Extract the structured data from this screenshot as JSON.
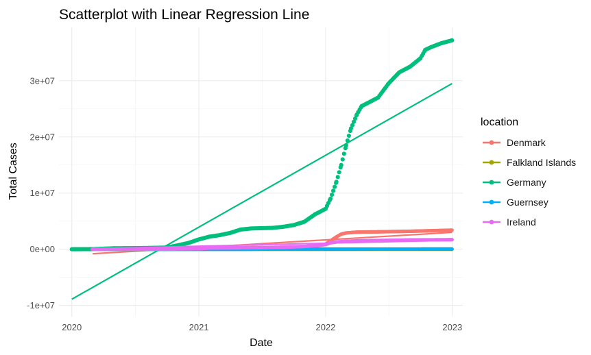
{
  "chart_data": {
    "type": "scatter",
    "title": "Scatterplot with Linear Regression Line",
    "xlabel": "Date",
    "ylabel": "Total Cases",
    "x_axis_type": "date",
    "xlim": [
      "2019-11-25",
      "2023-01-31"
    ],
    "ylim": [
      -12000000,
      39500000
    ],
    "x_ticks": [
      {
        "value": "2020-01-01",
        "label": "2020"
      },
      {
        "value": "2021-01-01",
        "label": "2021"
      },
      {
        "value": "2022-01-01",
        "label": "2022"
      },
      {
        "value": "2023-01-01",
        "label": "2023"
      }
    ],
    "y_ticks": [
      {
        "value": -10000000,
        "label": "-1e+07"
      },
      {
        "value": 0,
        "label": "0e+00"
      },
      {
        "value": 10000000,
        "label": "1e+07"
      },
      {
        "value": 20000000,
        "label": "2e+07"
      },
      {
        "value": 30000000,
        "label": "3e+07"
      }
    ],
    "grid": true,
    "legend_position": "right",
    "legend_title": "location",
    "series": [
      {
        "name": "Denmark",
        "color": "#F8766D",
        "points": [
          [
            "2020-02-27",
            0
          ],
          [
            "2020-06-01",
            12000
          ],
          [
            "2020-09-01",
            25000
          ],
          [
            "2020-12-01",
            90000
          ],
          [
            "2021-01-15",
            190000
          ],
          [
            "2021-06-01",
            290000
          ],
          [
            "2021-10-01",
            360000
          ],
          [
            "2021-11-15",
            450000
          ],
          [
            "2021-12-15",
            700000
          ],
          [
            "2022-01-01",
            900000
          ],
          [
            "2022-01-15",
            1500000
          ],
          [
            "2022-02-01",
            2200000
          ],
          [
            "2022-02-15",
            2700000
          ],
          [
            "2022-03-01",
            2900000
          ],
          [
            "2022-04-01",
            3050000
          ],
          [
            "2022-06-01",
            3100000
          ],
          [
            "2022-09-01",
            3200000
          ],
          [
            "2022-12-31",
            3400000
          ]
        ],
        "regression": {
          "start": [
            "2020-03-01",
            -800000
          ],
          "end": [
            "2022-12-31",
            3000000
          ]
        }
      },
      {
        "name": "Falkland Islands",
        "color": "#A3A500",
        "points": [
          [
            "2020-04-04",
            0
          ],
          [
            "2021-06-01",
            60
          ],
          [
            "2022-06-01",
            1900
          ],
          [
            "2022-12-31",
            1930
          ]
        ],
        "regression": {
          "start": [
            "2020-04-01",
            0
          ],
          "end": [
            "2022-12-31",
            0
          ]
        }
      },
      {
        "name": "Germany",
        "color": "#00BF7D",
        "points": [
          [
            "2020-01-01",
            0
          ],
          [
            "2020-03-01",
            20000
          ],
          [
            "2020-05-01",
            170000
          ],
          [
            "2020-08-01",
            220000
          ],
          [
            "2020-10-01",
            300000
          ],
          [
            "2020-11-01",
            700000
          ],
          [
            "2020-12-01",
            1100000
          ],
          [
            "2021-01-01",
            1750000
          ],
          [
            "2021-02-01",
            2250000
          ],
          [
            "2021-03-01",
            2500000
          ],
          [
            "2021-04-01",
            2900000
          ],
          [
            "2021-05-01",
            3500000
          ],
          [
            "2021-06-01",
            3700000
          ],
          [
            "2021-08-01",
            3800000
          ],
          [
            "2021-09-01",
            4000000
          ],
          [
            "2021-10-01",
            4300000
          ],
          [
            "2021-11-01",
            4900000
          ],
          [
            "2021-12-01",
            6200000
          ],
          [
            "2022-01-01",
            7200000
          ],
          [
            "2022-01-15",
            9000000
          ],
          [
            "2022-02-01",
            12000000
          ],
          [
            "2022-02-15",
            15000000
          ],
          [
            "2022-03-01",
            18500000
          ],
          [
            "2022-03-15",
            21500000
          ],
          [
            "2022-04-01",
            24000000
          ],
          [
            "2022-04-15",
            25500000
          ],
          [
            "2022-05-01",
            26000000
          ],
          [
            "2022-06-01",
            27000000
          ],
          [
            "2022-07-01",
            29500000
          ],
          [
            "2022-08-01",
            31500000
          ],
          [
            "2022-09-01",
            32500000
          ],
          [
            "2022-10-01",
            34000000
          ],
          [
            "2022-10-15",
            35500000
          ],
          [
            "2022-11-01",
            36000000
          ],
          [
            "2022-12-01",
            36700000
          ],
          [
            "2022-12-31",
            37200000
          ]
        ],
        "regression": {
          "start": [
            "2020-01-01",
            -8900000
          ],
          "end": [
            "2022-12-31",
            29500000
          ]
        }
      },
      {
        "name": "Guernsey",
        "color": "#00B0F6",
        "points": [
          [
            "2020-03-09",
            0
          ],
          [
            "2021-01-01",
            1000
          ],
          [
            "2022-01-01",
            20000
          ],
          [
            "2022-12-31",
            35000
          ]
        ],
        "regression": {
          "start": [
            "2020-03-01",
            0
          ],
          "end": [
            "2022-12-31",
            20000
          ]
        }
      },
      {
        "name": "Ireland",
        "color": "#E76BF3",
        "points": [
          [
            "2020-02-29",
            0
          ],
          [
            "2020-06-01",
            25000
          ],
          [
            "2020-10-01",
            40000
          ],
          [
            "2021-01-01",
            95000
          ],
          [
            "2021-02-01",
            210000
          ],
          [
            "2021-06-01",
            270000
          ],
          [
            "2021-09-01",
            360000
          ],
          [
            "2021-11-01",
            500000
          ],
          [
            "2021-12-15",
            700000
          ],
          [
            "2022-01-01",
            850000
          ],
          [
            "2022-01-15",
            1150000
          ],
          [
            "2022-02-01",
            1300000
          ],
          [
            "2022-03-01",
            1400000
          ],
          [
            "2022-04-01",
            1500000
          ],
          [
            "2022-06-01",
            1550000
          ],
          [
            "2022-09-01",
            1650000
          ],
          [
            "2022-12-31",
            1700000
          ]
        ],
        "regression": {
          "start": [
            "2020-03-01",
            100000
          ],
          "end": [
            "2022-12-31",
            1600000
          ]
        }
      }
    ]
  }
}
